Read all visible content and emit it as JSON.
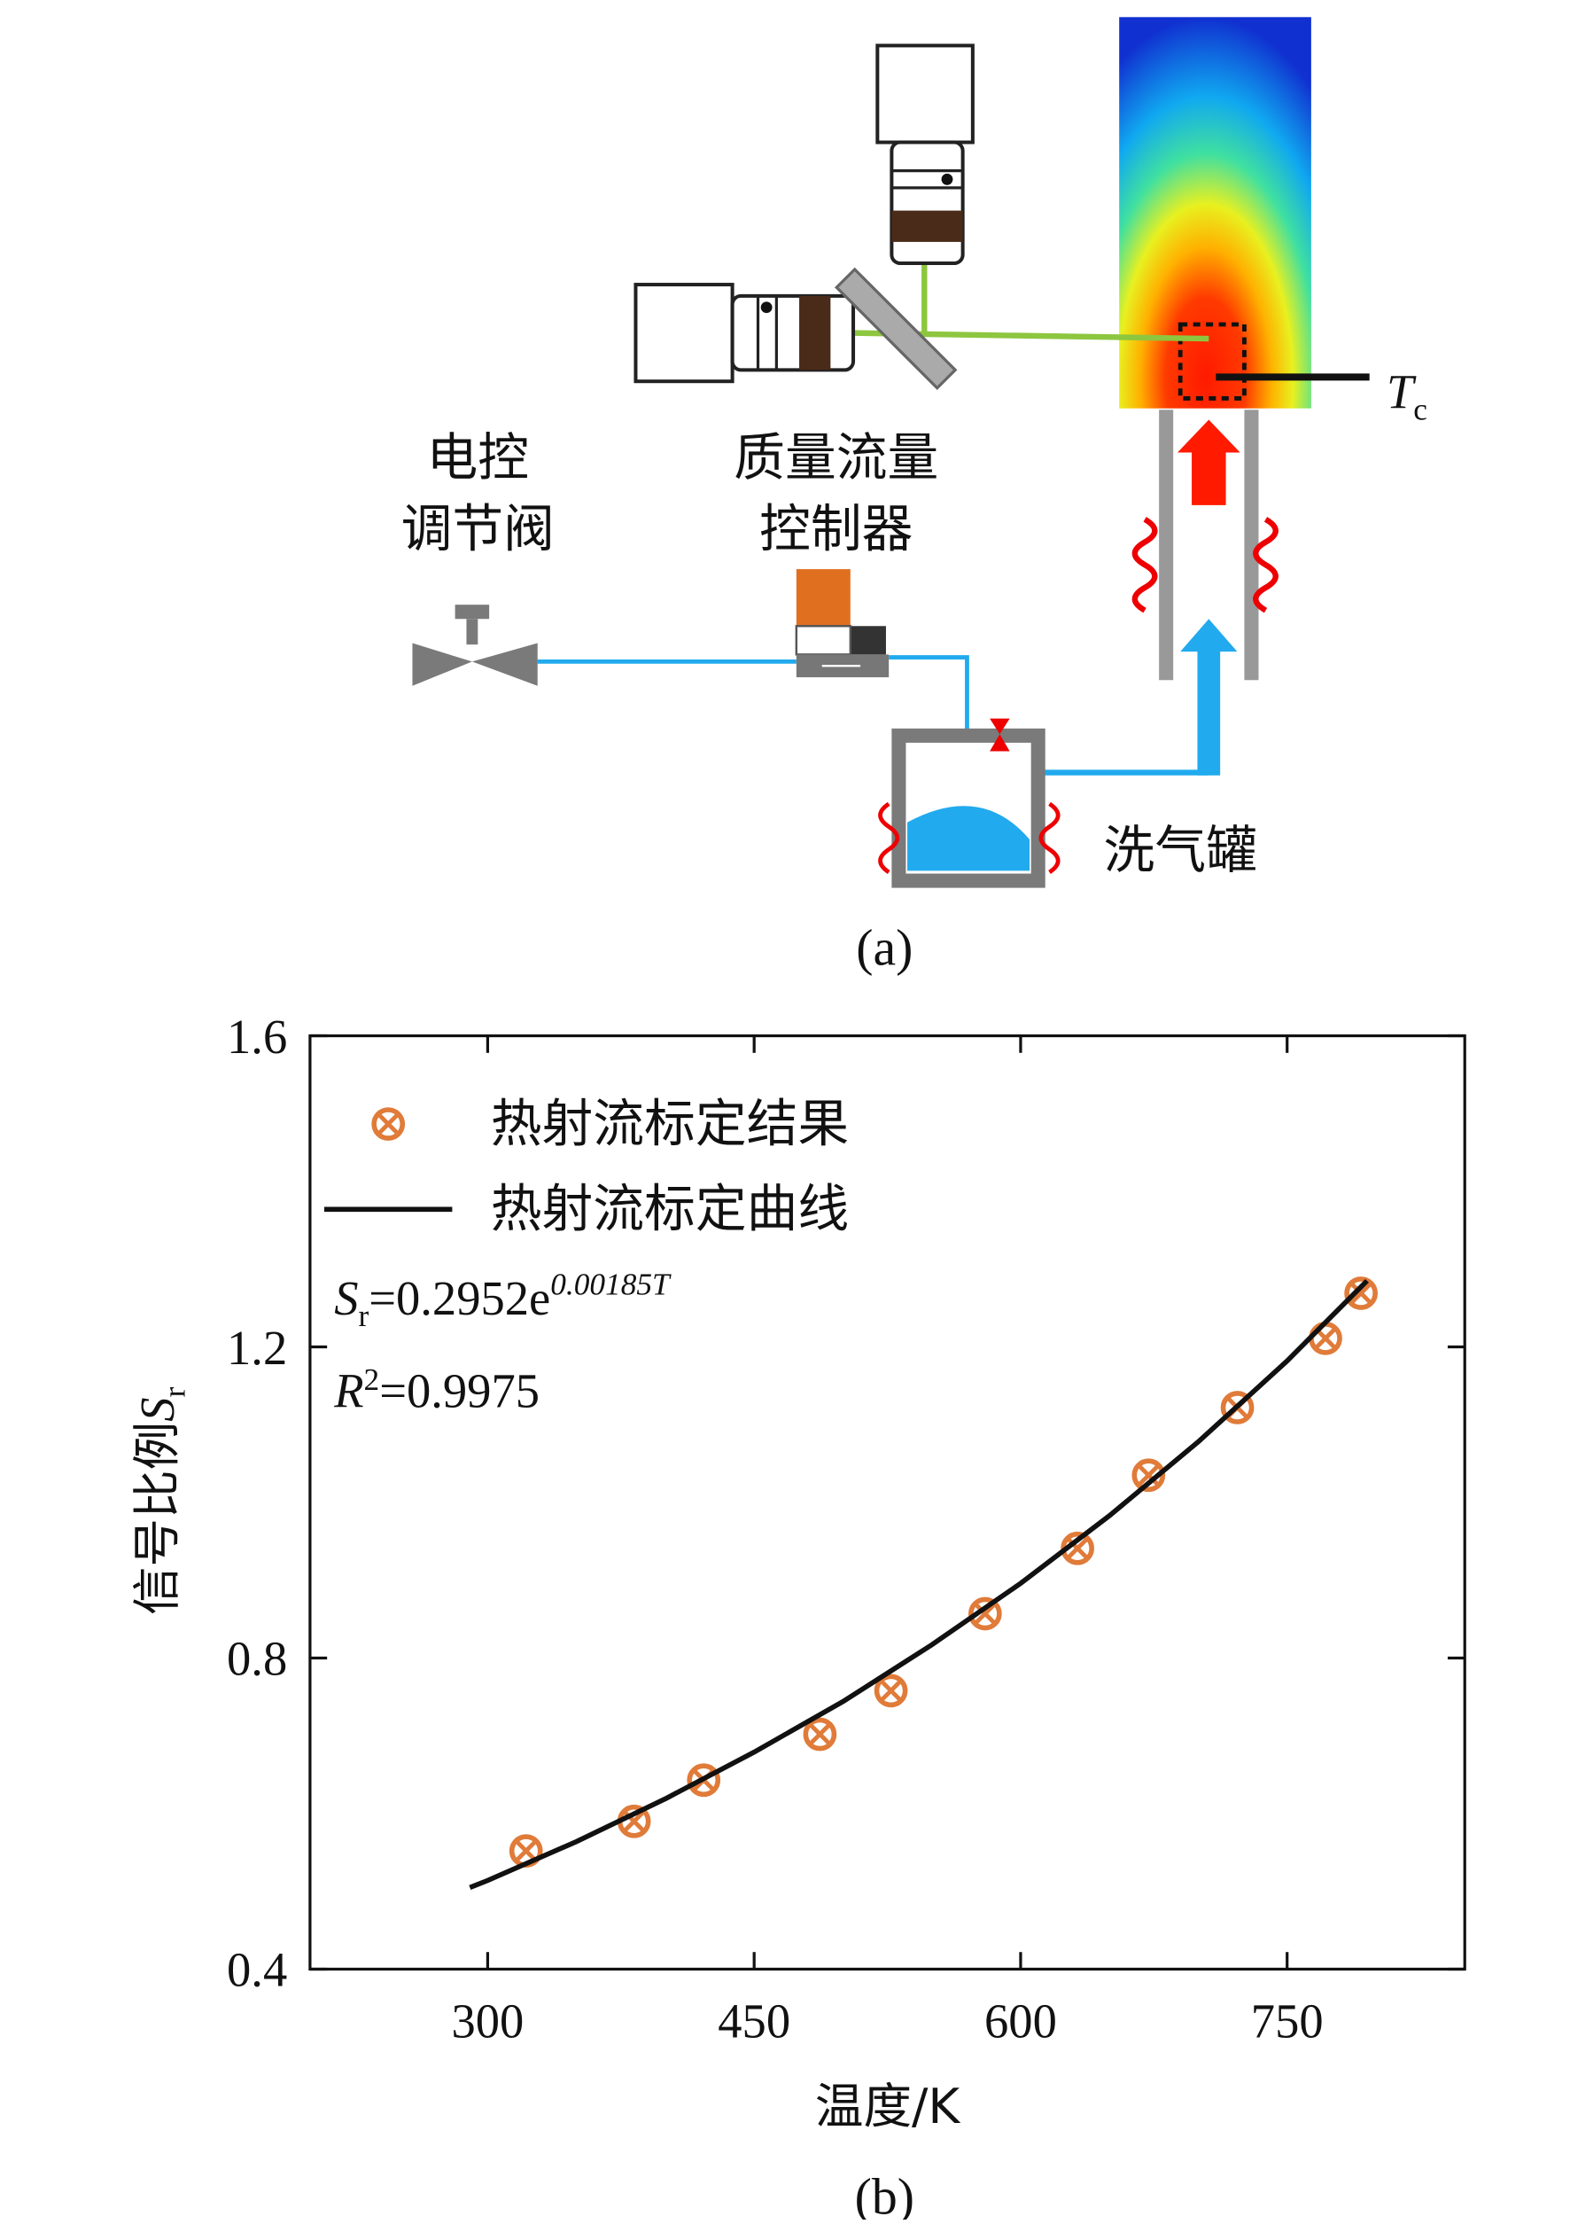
{
  "diagram": {
    "valve_label": [
      "电控",
      "调节阀"
    ],
    "mfc_label": [
      "质量流量",
      "控制器"
    ],
    "tank_label": "洗气罐",
    "temp_label": {
      "main": "T",
      "sub": "c"
    },
    "caption": "(a)"
  },
  "chart_data": {
    "type": "scatter",
    "caption": "(b)",
    "x_label": "温度/K",
    "y_label": {
      "main": "信号比例",
      "var": "S",
      "sub": "r"
    },
    "annotations": [
      {
        "var": "S",
        "sub": "r",
        "text": "=0.2952e",
        "sup": "0.00185T"
      },
      {
        "var": "R",
        "sup": "2",
        "text": "=0.9975"
      }
    ],
    "xlim": [
      200,
      850
    ],
    "xticks": [
      300,
      450,
      600,
      750
    ],
    "ylim": [
      0.4,
      1.6
    ],
    "yticks": [
      {
        "value": 0.4,
        "label": "0.4"
      },
      {
        "value": 0.8,
        "label": "0.8"
      },
      {
        "value": 1.2,
        "label": "1.2"
      },
      {
        "value": 1.6,
        "label": "1.6"
      }
    ],
    "grid": false,
    "legend": "upper-left",
    "series": [
      {
        "name": "热射流标定结果",
        "style": "marker",
        "color": "#e07b39",
        "x": [
          321.6,
          382.4,
          421.6,
          487,
          527,
          580,
          632,
          672,
          722,
          771.6,
          791.6
        ],
        "values": [
          0.552,
          0.59,
          0.643,
          0.702,
          0.758,
          0.857,
          0.941,
          1.035,
          1.122,
          1.211,
          1.269
        ]
      },
      {
        "name": "热射流标定曲线",
        "style": "line",
        "color": "#111111",
        "x": [
          290,
          300,
          350,
          400,
          450,
          500,
          550,
          600,
          650,
          700,
          750,
          795
        ],
        "values": [
          0.505,
          0.514,
          0.564,
          0.619,
          0.679,
          0.744,
          0.817,
          0.896,
          0.983,
          1.078,
          1.182,
          1.285
        ]
      }
    ]
  }
}
